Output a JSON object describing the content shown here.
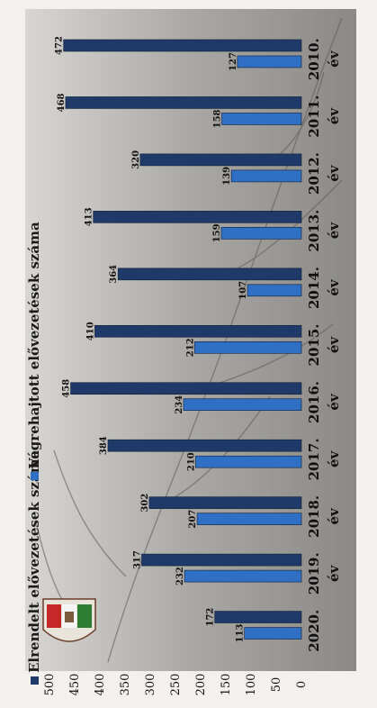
{
  "chart_data": {
    "type": "bar",
    "orientation": "horizontal",
    "categories": [
      "2010. év",
      "2011. év",
      "2012. év",
      "2013. év",
      "2014. év",
      "2015. év",
      "2016. év",
      "2017. év",
      "2018. év",
      "2019. év",
      "2020."
    ],
    "series": [
      {
        "name": "Elrendelt elővezetések száma",
        "color": "#1f3a68",
        "values": [
          472,
          468,
          320,
          413,
          364,
          410,
          458,
          384,
          302,
          317,
          172
        ]
      },
      {
        "name": "Végrehajtott elővezetések száma",
        "color": "#2f6fc4",
        "values": [
          127,
          158,
          139,
          159,
          107,
          212,
          234,
          210,
          207,
          232,
          113
        ]
      }
    ],
    "xlim": [
      0,
      500
    ],
    "xticks": [
      0,
      50,
      100,
      150,
      200,
      250,
      300,
      350,
      400,
      450,
      500
    ],
    "legend_position": "top",
    "grid": false
  }
}
